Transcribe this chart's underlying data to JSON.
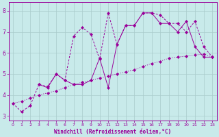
{
  "xlabel": "Windchill (Refroidissement éolien,°C)",
  "xlim": [
    -0.5,
    23.5
  ],
  "ylim": [
    2.8,
    8.4
  ],
  "xticks": [
    0,
    1,
    2,
    3,
    4,
    5,
    6,
    7,
    8,
    9,
    10,
    11,
    12,
    13,
    14,
    15,
    16,
    17,
    18,
    19,
    20,
    21,
    22,
    23
  ],
  "yticks": [
    3,
    4,
    5,
    6,
    7,
    8
  ],
  "background_color": "#c8eaea",
  "line_color": "#990099",
  "grid_color": "#aacccc",
  "line1_x": [
    0,
    1,
    2,
    3,
    4,
    5,
    6,
    7,
    8,
    9,
    10,
    11,
    12,
    13,
    14,
    15,
    16,
    17,
    18,
    19,
    20,
    21,
    22,
    23
  ],
  "line1_y": [
    3.6,
    3.2,
    3.5,
    4.5,
    4.4,
    5.0,
    4.7,
    6.8,
    7.2,
    6.9,
    5.7,
    7.9,
    6.4,
    7.3,
    7.3,
    7.9,
    7.9,
    7.8,
    7.4,
    7.4,
    7.0,
    7.5,
    6.3,
    5.8
  ],
  "line2_x": [
    3,
    4,
    5,
    6,
    7,
    8,
    9,
    10,
    11,
    12,
    13,
    14,
    15,
    16,
    17,
    18,
    19,
    20,
    21,
    22,
    23
  ],
  "line2_y": [
    4.5,
    4.35,
    5.0,
    4.7,
    4.5,
    4.5,
    4.7,
    5.75,
    4.35,
    6.4,
    7.3,
    7.3,
    7.9,
    7.9,
    7.4,
    7.4,
    7.0,
    7.5,
    6.3,
    5.8,
    5.8
  ],
  "line3_x": [
    0,
    1,
    2,
    3,
    4,
    5,
    6,
    7,
    8,
    9,
    10,
    11,
    12,
    13,
    14,
    15,
    16,
    17,
    18,
    19,
    20,
    21,
    22,
    23
  ],
  "line3_y": [
    3.6,
    3.7,
    3.85,
    4.0,
    4.1,
    4.2,
    4.35,
    4.5,
    4.6,
    4.7,
    4.8,
    4.9,
    5.0,
    5.1,
    5.2,
    5.35,
    5.5,
    5.6,
    5.75,
    5.8,
    5.85,
    5.9,
    5.95,
    5.8
  ]
}
